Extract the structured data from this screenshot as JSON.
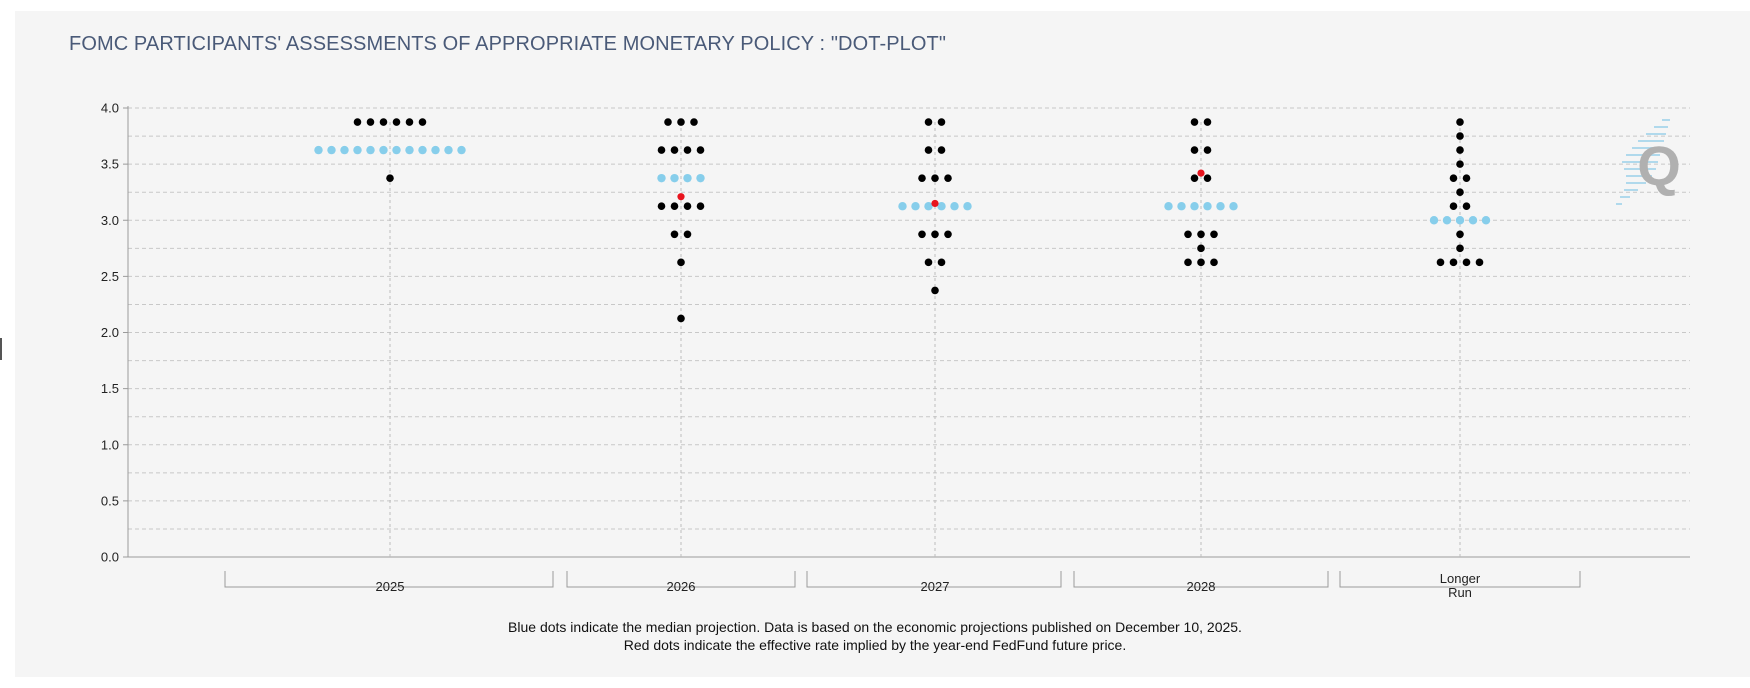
{
  "title": "FOMC PARTICIPANTS' ASSESSMENTS OF APPROPRIATE MONETARY POLICY : \"DOT-PLOT\"",
  "footnote": {
    "line1": "Blue dots indicate the median projection. Data is based on the economic projections published on December 10, 2025.",
    "line2": "Red dots indicate the effective rate implied by the year-end FedFund future price."
  },
  "watermark": {
    "letter": "Q"
  },
  "colors": {
    "median": "#87ceeb",
    "participant": "#000000",
    "implied": "#e8141e",
    "grid": "#c8c8c8",
    "title": "#4a5a78"
  },
  "chart_data": {
    "type": "scatter",
    "title": "FOMC PARTICIPANTS' ASSESSMENTS OF APPROPRIATE MONETARY POLICY : \"DOT-PLOT\"",
    "xlabel": "",
    "ylabel": "",
    "ylim": [
      0,
      4
    ],
    "yticks": [
      "4.0",
      "3.5",
      "3.0",
      "2.5",
      "2.0",
      "1.5",
      "1.0",
      "0.5",
      "0.0"
    ],
    "ytick_values": [
      4.0,
      3.5,
      3.0,
      2.5,
      2.0,
      1.5,
      1.0,
      0.5,
      0.0
    ],
    "grid": true,
    "categories": [
      {
        "label": "2025",
        "dots": [
          {
            "rate": 3.875,
            "count": 6,
            "kind": "participant"
          },
          {
            "rate": 3.625,
            "count": 12,
            "kind": "median"
          },
          {
            "rate": 3.375,
            "count": 1,
            "kind": "participant"
          }
        ],
        "implied": null
      },
      {
        "label": "2026",
        "dots": [
          {
            "rate": 3.875,
            "count": 3,
            "kind": "participant"
          },
          {
            "rate": 3.625,
            "count": 4,
            "kind": "participant"
          },
          {
            "rate": 3.375,
            "count": 4,
            "kind": "median"
          },
          {
            "rate": 3.125,
            "count": 4,
            "kind": "participant"
          },
          {
            "rate": 2.875,
            "count": 2,
            "kind": "participant"
          },
          {
            "rate": 2.625,
            "count": 1,
            "kind": "participant"
          },
          {
            "rate": 2.125,
            "count": 1,
            "kind": "participant"
          }
        ],
        "implied": 3.21
      },
      {
        "label": "2027",
        "dots": [
          {
            "rate": 3.875,
            "count": 2,
            "kind": "participant"
          },
          {
            "rate": 3.625,
            "count": 2,
            "kind": "participant"
          },
          {
            "rate": 3.375,
            "count": 3,
            "kind": "participant"
          },
          {
            "rate": 3.125,
            "count": 6,
            "kind": "median"
          },
          {
            "rate": 2.875,
            "count": 3,
            "kind": "participant"
          },
          {
            "rate": 2.625,
            "count": 2,
            "kind": "participant"
          },
          {
            "rate": 2.375,
            "count": 1,
            "kind": "participant"
          }
        ],
        "implied": 3.15
      },
      {
        "label": "2028",
        "dots": [
          {
            "rate": 3.875,
            "count": 2,
            "kind": "participant"
          },
          {
            "rate": 3.625,
            "count": 2,
            "kind": "participant"
          },
          {
            "rate": 3.375,
            "count": 2,
            "kind": "participant"
          },
          {
            "rate": 3.125,
            "count": 6,
            "kind": "median"
          },
          {
            "rate": 2.875,
            "count": 3,
            "kind": "participant"
          },
          {
            "rate": 2.75,
            "count": 1,
            "kind": "participant"
          },
          {
            "rate": 2.625,
            "count": 3,
            "kind": "participant"
          }
        ],
        "implied": 3.42
      },
      {
        "label": "Longer\nRun",
        "label_lines": [
          "Longer",
          "Run"
        ],
        "dots": [
          {
            "rate": 3.875,
            "count": 1,
            "kind": "participant"
          },
          {
            "rate": 3.75,
            "count": 1,
            "kind": "participant"
          },
          {
            "rate": 3.625,
            "count": 1,
            "kind": "participant"
          },
          {
            "rate": 3.5,
            "count": 1,
            "kind": "participant"
          },
          {
            "rate": 3.375,
            "count": 2,
            "kind": "participant"
          },
          {
            "rate": 3.25,
            "count": 1,
            "kind": "participant"
          },
          {
            "rate": 3.125,
            "count": 2,
            "kind": "participant"
          },
          {
            "rate": 3.0,
            "count": 5,
            "kind": "median"
          },
          {
            "rate": 2.875,
            "count": 1,
            "kind": "participant"
          },
          {
            "rate": 2.75,
            "count": 1,
            "kind": "participant"
          },
          {
            "rate": 2.625,
            "count": 4,
            "kind": "participant"
          }
        ],
        "implied": null
      }
    ]
  }
}
